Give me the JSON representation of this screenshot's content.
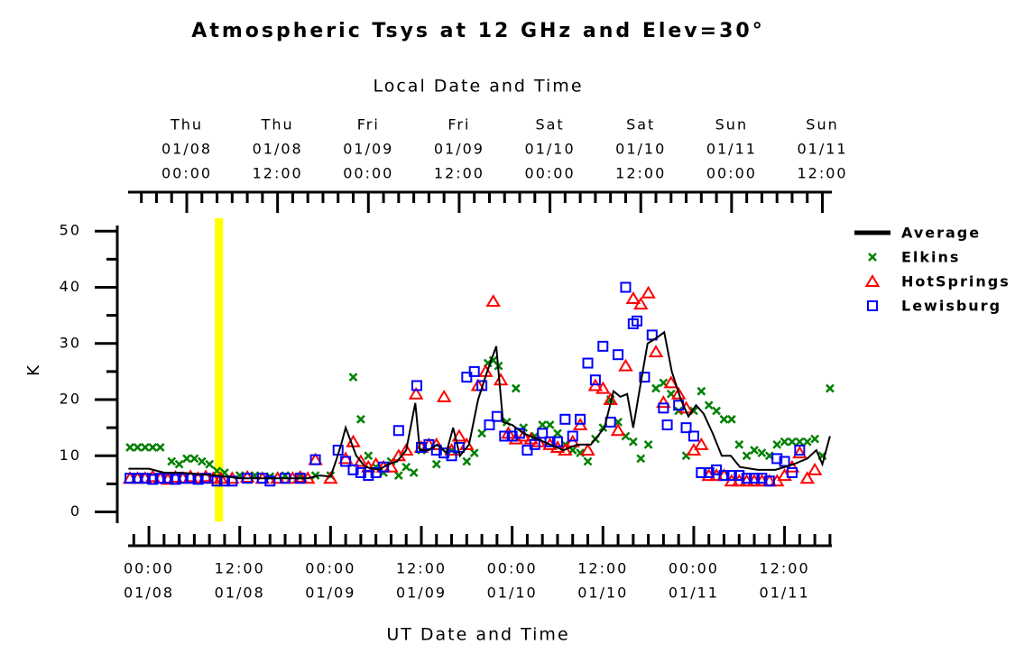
{
  "chart_data": {
    "type": "scatter",
    "title": "Atmospheric Tsys at 12 GHz and Elev=30°",
    "x2label": "Local Date and Time",
    "xlabel": "UT Date and Time",
    "ylabel": "K",
    "xlim": [
      -2.75,
      90.25
    ],
    "ylim": [
      -2,
      51
    ],
    "yticks": [
      0,
      10,
      20,
      30,
      40,
      50
    ],
    "yminorticks": [
      5,
      15,
      25,
      35,
      45
    ],
    "xticks": [
      {
        "value": 0,
        "label": [
          "00:00",
          "01/08"
        ]
      },
      {
        "value": 12,
        "label": [
          "12:00",
          "01/08"
        ]
      },
      {
        "value": 24,
        "label": [
          "00:00",
          "01/09"
        ]
      },
      {
        "value": 36,
        "label": [
          "12:00",
          "01/09"
        ]
      },
      {
        "value": 48,
        "label": [
          "00:00",
          "01/10"
        ]
      },
      {
        "value": 60,
        "label": [
          "12:00",
          "01/10"
        ]
      },
      {
        "value": 72,
        "label": [
          "00:00",
          "01/11"
        ]
      },
      {
        "value": 84,
        "label": [
          "12:00",
          "01/11"
        ]
      }
    ],
    "xminorticks": [
      -2,
      2,
      4,
      6,
      8,
      10,
      14,
      16,
      18,
      20,
      22,
      26,
      28,
      30,
      32,
      34,
      38,
      40,
      42,
      44,
      46,
      50,
      52,
      54,
      56,
      58,
      62,
      64,
      66,
      68,
      70,
      74,
      76,
      78,
      80,
      82,
      86,
      88,
      90
    ],
    "x2ticks": [
      {
        "value": 5,
        "label": [
          "Thu",
          "01/08",
          "00:00"
        ]
      },
      {
        "value": 17,
        "label": [
          "Thu",
          "01/08",
          "12:00"
        ]
      },
      {
        "value": 29,
        "label": [
          "Fri",
          "01/09",
          "00:00"
        ]
      },
      {
        "value": 41,
        "label": [
          "Fri",
          "01/09",
          "12:00"
        ]
      },
      {
        "value": 53,
        "label": [
          "Sat",
          "01/10",
          "00:00"
        ]
      },
      {
        "value": 65,
        "label": [
          "Sat",
          "01/10",
          "12:00"
        ]
      },
      {
        "value": 77,
        "label": [
          "Sun",
          "01/11",
          "00:00"
        ]
      },
      {
        "value": 89,
        "label": [
          "Sun",
          "01/11",
          "12:00"
        ]
      }
    ],
    "x2minorticks": [
      -1,
      1,
      3,
      7,
      9,
      11,
      13,
      15,
      19,
      21,
      23,
      25,
      27,
      31,
      33,
      35,
      37,
      39,
      43,
      45,
      47,
      49,
      51,
      55,
      57,
      59,
      61,
      63,
      67,
      69,
      71,
      73,
      75,
      79,
      81,
      83,
      85,
      87
    ],
    "highlight": {
      "x": [
        8.7,
        9.8
      ],
      "color": "#ffff00"
    },
    "legend": "right",
    "series": [
      {
        "name": "Average",
        "marker": "line",
        "color": "#000000",
        "x": [
          -2.7,
          0,
          2,
          4.2,
          6,
          8.9,
          12,
          16,
          21,
          22.6,
          24,
          24.7,
          25.4,
          26,
          27.4,
          28.6,
          30.4,
          31.6,
          32.8,
          34,
          35.2,
          35.8,
          37,
          38.1,
          39.3,
          40.2,
          41.1,
          42.3,
          43.5,
          44.7,
          45.9,
          46.8,
          48,
          49.5,
          51.3,
          53,
          54.8,
          56.6,
          58.4,
          60.2,
          61.4,
          62.3,
          63.2,
          64,
          65,
          65.9,
          67.1,
          68.1,
          69.1,
          70.3,
          71.3,
          72.3,
          73.3,
          74.5,
          75.7,
          76.9,
          78.1,
          80.5,
          82.8,
          85.2,
          87,
          88.2,
          89,
          90
        ],
        "values": [
          7.7,
          7.7,
          7,
          7,
          6.8,
          6.5,
          6,
          6,
          6,
          6.5,
          6.3,
          9,
          12,
          15,
          10,
          8,
          7.5,
          8.5,
          9,
          11,
          19.4,
          11,
          11,
          12,
          10.5,
          15,
          10,
          12,
          20,
          25,
          29.5,
          16,
          15.5,
          14,
          13,
          12,
          11,
          12,
          12,
          15,
          21.5,
          20.5,
          21,
          15,
          23,
          30,
          31,
          32,
          25,
          20,
          17,
          19,
          17.5,
          14,
          10,
          10,
          8,
          7.5,
          7.5,
          8.5,
          9.5,
          11,
          8.5,
          13.5
        ]
      },
      {
        "name": "Elkins",
        "marker": "x",
        "color": "#008000",
        "x": [
          -2.5,
          -1.5,
          -0.5,
          0.5,
          1.5,
          3,
          4,
          5,
          6,
          7,
          8,
          9,
          10,
          12,
          14,
          16,
          18,
          20,
          22,
          24,
          27,
          28,
          29,
          30,
          31,
          32,
          33,
          34,
          35,
          36,
          38,
          40,
          42,
          43,
          44,
          44.8,
          45.5,
          46.2,
          47.3,
          48.5,
          49.5,
          51,
          52,
          53,
          54,
          55,
          56,
          57,
          58,
          59,
          60,
          61,
          62,
          63,
          64,
          65,
          66,
          67,
          68,
          69,
          70,
          71,
          72,
          73,
          74,
          75,
          76,
          77,
          78,
          79,
          80,
          81,
          82,
          83,
          84,
          85,
          86,
          87,
          88,
          89,
          90
        ],
        "values": [
          11.5,
          11.5,
          11.5,
          11.5,
          11.5,
          9,
          8.5,
          9.5,
          9.5,
          9,
          8.5,
          7.3,
          7,
          6.5,
          6.5,
          6.3,
          6.5,
          6.3,
          6.5,
          6.5,
          24,
          16.5,
          10,
          8,
          7,
          9,
          6.5,
          8,
          7,
          11,
          8.5,
          11,
          9,
          10.5,
          14,
          26.5,
          27,
          26,
          16,
          22,
          15,
          13.5,
          15.5,
          15.5,
          14,
          12,
          11,
          10.5,
          9,
          13,
          15,
          20,
          16,
          13.5,
          12.5,
          9.5,
          12,
          22,
          23,
          21,
          18,
          10,
          18,
          21.5,
          19,
          18,
          16.5,
          16.5,
          12,
          10,
          11,
          10.5,
          10,
          12,
          12.5,
          12.5,
          12.5,
          12.5,
          13,
          10,
          22
        ]
      },
      {
        "name": "HotSprings",
        "marker": "triangle",
        "color": "#ff0000",
        "x": [
          -2.5,
          -1.5,
          -0.5,
          0.5,
          1.5,
          2.5,
          3.5,
          4.5,
          5.5,
          6.5,
          7.5,
          8.5,
          9.5,
          11,
          13,
          15,
          17,
          19,
          20,
          21,
          22,
          24,
          26,
          27,
          28,
          29,
          30,
          31,
          32,
          33,
          34,
          35.3,
          36,
          37,
          38,
          39,
          40,
          41,
          42,
          43.5,
          44.5,
          45.5,
          46.5,
          47.5,
          48.5,
          49.5,
          50.5,
          51.5,
          53,
          54,
          55,
          56,
          57,
          58,
          59,
          60,
          61,
          62,
          63,
          64,
          65,
          66,
          67,
          68,
          69,
          70,
          71,
          72,
          73,
          74,
          75,
          76,
          77,
          78,
          79,
          80,
          81,
          82,
          83,
          84,
          85,
          86,
          87,
          88
        ],
        "values": [
          6,
          6,
          6,
          6.3,
          6,
          5.8,
          6.2,
          6,
          6.3,
          6,
          6.3,
          6,
          6,
          6,
          6.2,
          6,
          6,
          6,
          6.2,
          6,
          9.3,
          6,
          9.5,
          12.5,
          9,
          8,
          8.5,
          8,
          8,
          10,
          11,
          21,
          11.5,
          12,
          12,
          20.5,
          11,
          13.5,
          12,
          22.5,
          25,
          37.5,
          23.5,
          14,
          13,
          13.5,
          13,
          12.5,
          12,
          11.5,
          11,
          12.5,
          15.5,
          11,
          22.5,
          22,
          20,
          14.5,
          26,
          38,
          37,
          39,
          28.5,
          19.5,
          23,
          21,
          18.5,
          11,
          12,
          6.5,
          6.5,
          6.5,
          5.5,
          5.5,
          5.5,
          5.5,
          5.5,
          5.5,
          5.5,
          6.5,
          8,
          10.5,
          6,
          7.5
        ]
      },
      {
        "name": "Lewisburg",
        "marker": "square",
        "color": "#0000ff",
        "x": [
          -2.5,
          -1.5,
          -0.5,
          0.5,
          1.5,
          2.5,
          3.5,
          4.5,
          5.5,
          6.5,
          7.5,
          9,
          10,
          11,
          13,
          15,
          16,
          18,
          20,
          22,
          25,
          26,
          27,
          28,
          29,
          30,
          31,
          33,
          35.4,
          36,
          37,
          38,
          39,
          40,
          41,
          42,
          43,
          44,
          45,
          46,
          47,
          48,
          49,
          50,
          51,
          52,
          53,
          54,
          55,
          56,
          57,
          58,
          59,
          60,
          61,
          62,
          63,
          64,
          64.5,
          65.5,
          66.5,
          68,
          68.5,
          70,
          71,
          72,
          73,
          74,
          75,
          76,
          77,
          78,
          79,
          80,
          81,
          82,
          83,
          84,
          85,
          86
        ],
        "values": [
          6,
          6,
          6,
          5.8,
          6,
          6,
          5.8,
          6,
          6,
          5.8,
          6,
          5.5,
          5.5,
          5.5,
          6,
          6,
          5.5,
          6,
          6,
          9.3,
          11,
          9,
          7.5,
          7,
          6.5,
          7,
          8,
          14.5,
          22.5,
          11.5,
          12,
          11,
          10.5,
          10,
          11.5,
          24,
          25,
          22.5,
          15.5,
          17,
          13.5,
          13.5,
          14,
          11,
          12,
          14,
          12.5,
          12.5,
          16.5,
          13.5,
          16.5,
          26.5,
          23.5,
          29.5,
          16,
          28,
          40,
          33.5,
          34,
          24,
          31.5,
          18.5,
          15.5,
          19,
          15,
          13.5,
          7,
          7,
          7.5,
          6.5,
          6.5,
          6.5,
          6,
          6,
          6,
          5.5,
          9.5,
          9,
          7,
          11
        ]
      }
    ]
  }
}
